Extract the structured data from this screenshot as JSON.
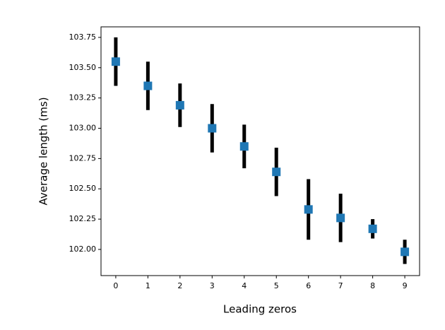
{
  "chart_data": {
    "type": "errorbar",
    "xlabel": "Leading zeros",
    "ylabel": "Average length (ms)",
    "x": [
      0,
      1,
      2,
      3,
      4,
      5,
      6,
      7,
      8,
      9
    ],
    "values": [
      103.55,
      103.35,
      103.19,
      103.0,
      102.85,
      102.64,
      102.33,
      102.26,
      102.17,
      101.98
    ],
    "errors": [
      0.2,
      0.2,
      0.18,
      0.2,
      0.18,
      0.2,
      0.25,
      0.2,
      0.08,
      0.1
    ],
    "color": "#1f77b4",
    "error_color": "#000000",
    "xlim": [
      -0.46,
      9.46
    ],
    "ylim": [
      101.784,
      103.837
    ],
    "xticks": [
      0,
      1,
      2,
      3,
      4,
      5,
      6,
      7,
      8,
      9
    ],
    "yticks": [
      {
        "value": 102,
        "label": "102.00"
      },
      102.25,
      {
        "value": 102.5,
        "label": "102.50"
      },
      102.75,
      {
        "value": 103,
        "label": "103.00"
      },
      103.25,
      {
        "value": 103.5,
        "label": "103.50"
      },
      103.75
    ],
    "grid": false
  }
}
